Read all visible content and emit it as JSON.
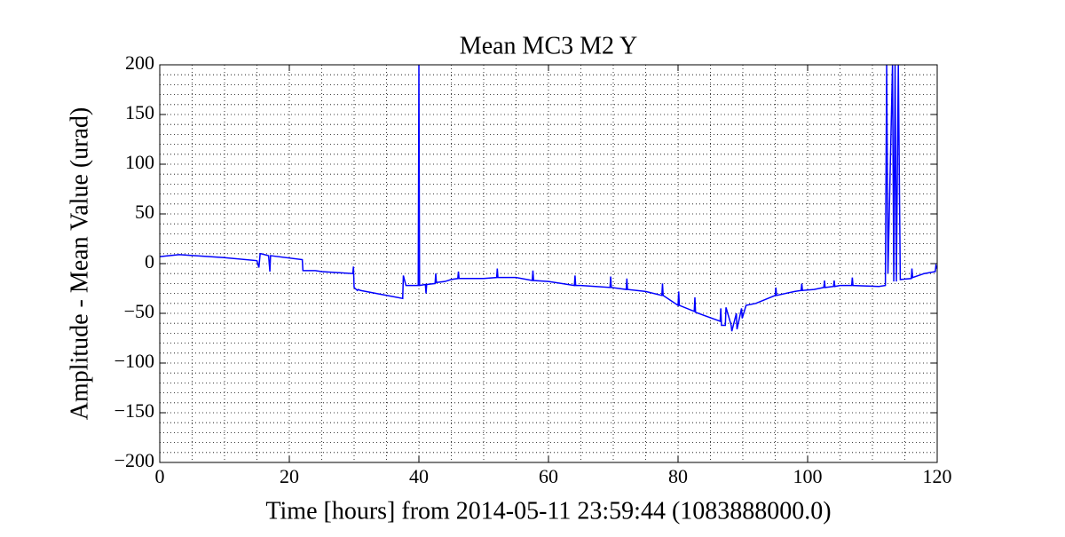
{
  "chart_data": {
    "type": "line",
    "title": "Mean MC3 M2 Y",
    "xlabel": "Time [hours] from 2014-05-11 23:59:44 (1083888000.0)",
    "ylabel": "Amplitude - Mean Value (urad)",
    "color": "#0000ff",
    "grid": true,
    "xlim": [
      0,
      120
    ],
    "ylim": [
      -200,
      200
    ],
    "xticks": [
      0,
      20,
      40,
      60,
      80,
      100,
      120
    ],
    "yticks": [
      {
        "value": -200,
        "label": "−200"
      },
      {
        "value": -150,
        "label": "−150"
      },
      {
        "value": -100,
        "label": "−100"
      },
      {
        "value": -50,
        "label": "−50"
      },
      0,
      50,
      100,
      150,
      200
    ],
    "xminorticks": [
      0,
      5,
      10,
      15,
      20,
      25,
      30,
      35,
      40,
      45,
      50,
      55,
      60,
      65,
      70,
      75,
      80,
      85,
      90,
      95,
      100,
      105,
      110,
      115,
      120
    ],
    "yminorticks": [
      -200,
      -190,
      -180,
      -170,
      -160,
      -150,
      -140,
      -130,
      -120,
      -110,
      -100,
      -90,
      -80,
      -70,
      -60,
      -50,
      -40,
      -30,
      -20,
      -10,
      0,
      10,
      20,
      30,
      40,
      50,
      60,
      70,
      80,
      90,
      100,
      110,
      120,
      130,
      140,
      150,
      160,
      170,
      180,
      190,
      200
    ],
    "x": [
      0,
      3,
      10,
      15,
      15.3,
      15.5,
      15.6,
      16.8,
      17,
      17.1,
      22,
      22.1,
      24,
      25,
      29.8,
      29.9,
      30,
      30.5,
      30.6,
      31,
      37.5,
      37.6,
      38,
      39.9,
      40,
      40.1,
      41,
      41.1,
      41.2,
      42.5,
      42.6,
      42.7,
      44,
      45,
      46,
      46.1,
      46.2,
      50,
      52,
      52.1,
      52.2,
      55,
      57.5,
      57.6,
      57.7,
      60,
      64,
      64.1,
      64.2,
      65,
      69.5,
      69.6,
      69.7,
      72,
      72.1,
      72.2,
      75,
      77.5,
      77.6,
      77.7,
      80,
      80.1,
      80.2,
      82.5,
      82.6,
      82.7,
      86.5,
      86.6,
      86.7,
      87.3,
      87.4,
      88.2,
      88.3,
      89,
      89.1,
      89.8,
      89.9,
      90.5,
      92,
      95,
      95.1,
      95.2,
      98,
      99,
      99.1,
      99.2,
      101,
      102.5,
      102.6,
      102.7,
      104,
      104.1,
      104.2,
      105,
      106.8,
      106.9,
      107,
      111,
      112,
      112.2,
      112.4,
      113.1,
      113.3,
      113.5,
      113.7,
      114,
      114.3,
      116,
      116.1,
      116.2,
      118,
      119.7,
      119.8,
      120
    ],
    "values": [
      7,
      9,
      6,
      3,
      -4,
      10,
      10,
      8,
      -8,
      8,
      4,
      -7,
      -7,
      -8,
      -10,
      -3,
      -24,
      -27,
      -26,
      -27,
      -35,
      -12,
      -22,
      -22,
      200,
      -22,
      -21,
      -30,
      -21,
      -20,
      -10,
      -19,
      -18,
      -16,
      -15,
      -8,
      -15,
      -15,
      -14,
      -5,
      -14,
      -14,
      -17,
      -7,
      -17,
      -18,
      -22,
      -12,
      -22,
      -22,
      -24,
      -13,
      -24,
      -26,
      -15,
      -26,
      -28,
      -32,
      -20,
      -32,
      -42,
      -28,
      -42,
      -48,
      -34,
      -49,
      -58,
      -45,
      -62,
      -62,
      -44,
      -62,
      -68,
      -50,
      -66,
      -45,
      -55,
      -42,
      -40,
      -32,
      -24,
      -32,
      -28,
      -27,
      -20,
      -27,
      -26,
      -24,
      -17,
      -24,
      -23,
      -17,
      -23,
      -22,
      -22,
      -14,
      -22,
      -23,
      -22,
      200,
      -10,
      200,
      -18,
      200,
      -18,
      200,
      -16,
      -15,
      -5,
      -14,
      -10,
      -8,
      -2,
      -5
    ]
  }
}
